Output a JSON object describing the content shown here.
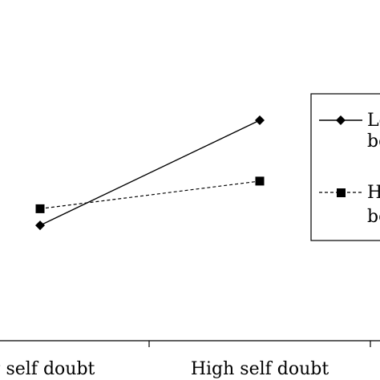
{
  "chart_data": {
    "type": "line",
    "categories": [
      "Low self doubt",
      "High self doubt"
    ],
    "category_labels_shown": [
      "w self doubt",
      "High self doubt"
    ],
    "series": [
      {
        "name": "Le…\nbe…",
        "legend_line1": "Le",
        "legend_line2": "be",
        "values": [
          2.1,
          4.0
        ],
        "marker": "diamond",
        "line": "solid"
      },
      {
        "name": "H…\nbe…",
        "legend_line1": "H",
        "legend_line2": "be",
        "values": [
          2.4,
          2.9
        ],
        "marker": "square",
        "line": "dashed"
      }
    ],
    "ylim": [
      0,
      6
    ],
    "grid": false,
    "legend": "right",
    "colors": {
      "line": "#000000",
      "background": "#ffffff"
    }
  }
}
